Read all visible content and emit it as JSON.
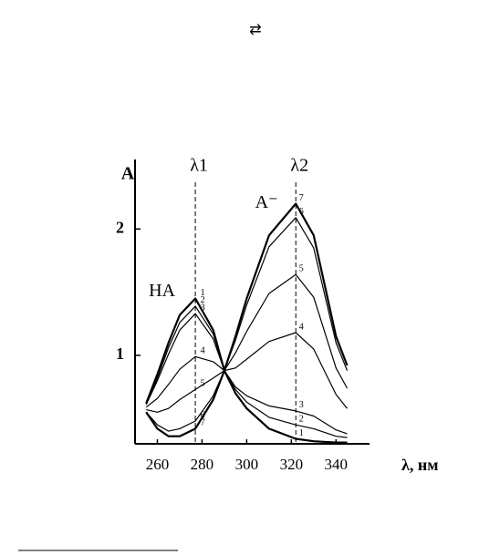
{
  "header_symbol": "⇄",
  "chart_data": {
    "type": "line",
    "y_label": "A",
    "x_label": "λ, нм",
    "x": [
      255,
      260,
      265,
      270,
      277,
      285,
      290,
      295,
      300,
      310,
      322,
      330,
      340,
      345
    ],
    "series": [
      {
        "name": "1",
        "color": "#000000",
        "values": [
          0.62,
          0.85,
          1.1,
          1.32,
          1.45,
          1.2,
          0.88,
          0.7,
          0.58,
          0.42,
          0.34,
          0.32,
          0.31,
          0.31
        ]
      },
      {
        "name": "2",
        "color": "#000000",
        "values": [
          0.62,
          0.82,
          1.06,
          1.26,
          1.39,
          1.17,
          0.88,
          0.73,
          0.63,
          0.51,
          0.45,
          0.42,
          0.36,
          0.35
        ]
      },
      {
        "name": "3",
        "color": "#000000",
        "values": [
          0.61,
          0.8,
          1.01,
          1.2,
          1.33,
          1.13,
          0.88,
          0.75,
          0.68,
          0.6,
          0.56,
          0.52,
          0.41,
          0.38
        ]
      },
      {
        "name": "4",
        "color": "#000000",
        "values": [
          0.59,
          0.66,
          0.77,
          0.89,
          0.99,
          0.95,
          0.88,
          0.9,
          0.97,
          1.11,
          1.18,
          1.05,
          0.69,
          0.58
        ]
      },
      {
        "name": "5",
        "color": "#000000",
        "values": [
          0.57,
          0.55,
          0.58,
          0.65,
          0.73,
          0.82,
          0.88,
          1.02,
          1.19,
          1.49,
          1.64,
          1.46,
          0.9,
          0.74
        ]
      },
      {
        "name": "6",
        "color": "#000000",
        "values": [
          0.55,
          0.45,
          0.4,
          0.42,
          0.48,
          0.68,
          0.88,
          1.12,
          1.4,
          1.86,
          2.09,
          1.85,
          1.1,
          0.88
        ]
      },
      {
        "name": "7",
        "color": "#000000",
        "values": [
          0.55,
          0.42,
          0.36,
          0.36,
          0.42,
          0.65,
          0.88,
          1.15,
          1.45,
          1.95,
          2.2,
          1.95,
          1.15,
          0.92
        ]
      }
    ],
    "reference_lines": [
      {
        "label": "λ1",
        "x": 277
      },
      {
        "label": "λ2",
        "x": 322
      }
    ],
    "annotations": [
      {
        "text": "HA",
        "x": 268,
        "y": 1.5
      },
      {
        "text": "A⁻",
        "x": 314,
        "y": 2.2
      }
    ],
    "xlim": [
      250,
      355
    ],
    "ylim": [
      0.3,
      2.55
    ],
    "xticks": [
      260,
      280,
      300,
      320,
      340
    ],
    "yticks": [
      1,
      2
    ]
  }
}
